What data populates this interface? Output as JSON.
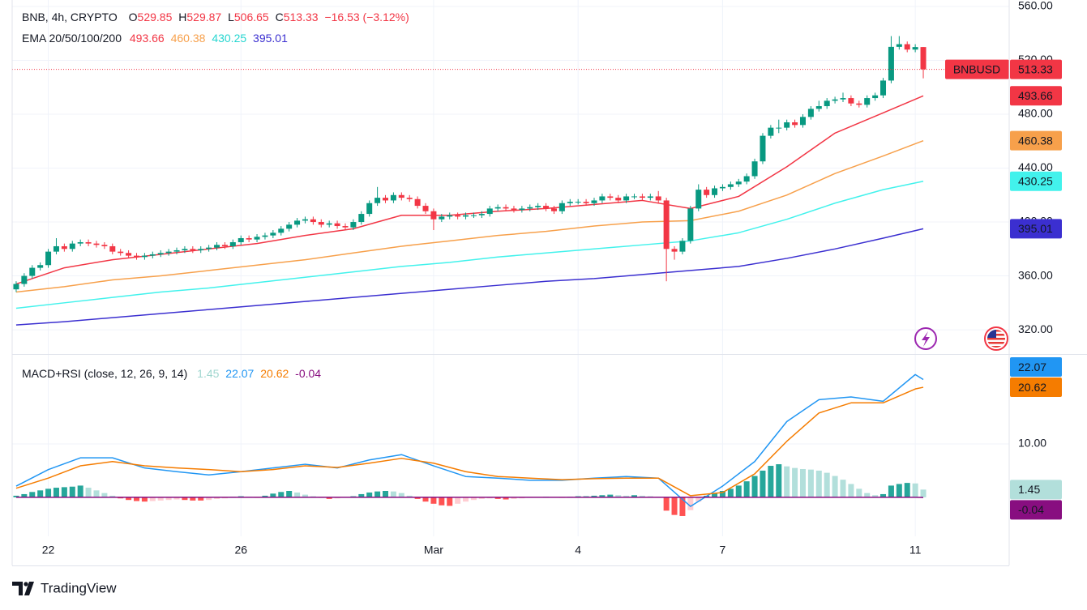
{
  "chart_data": [
    {
      "type": "candlestick",
      "title": "BNB, 4h, CRYPTO",
      "ohlc_labels": [
        "O",
        "H",
        "L",
        "C"
      ],
      "change": "−16.53 (−3.12%)",
      "symbol": "BNBUSD",
      "up_color": "#089981",
      "down_color": "#f23645",
      "open": [
        350,
        354,
        360,
        366,
        368,
        378,
        382,
        380,
        384,
        385,
        384,
        383,
        382,
        378,
        377,
        375,
        374,
        375,
        376,
        377,
        378,
        379,
        380,
        379,
        380,
        381,
        383,
        382,
        385,
        388,
        387,
        389,
        390,
        392,
        395,
        398,
        401,
        402,
        400,
        398,
        399,
        397,
        396,
        400,
        406,
        414,
        418,
        416,
        420,
        418,
        417,
        412,
        408,
        402,
        404,
        405,
        404,
        405,
        405,
        406,
        410,
        411,
        410,
        409,
        410,
        411,
        412,
        410,
        408,
        414,
        415,
        415,
        414,
        416,
        419,
        418,
        416,
        419,
        419,
        418,
        419,
        416,
        380,
        378,
        386,
        410,
        424,
        420,
        425,
        426,
        428,
        430,
        434,
        445,
        464,
        470,
        470,
        474,
        472,
        478,
        484,
        486,
        490,
        491,
        492,
        488,
        487,
        492,
        494,
        505,
        530,
        532,
        528,
        529.85
      ],
      "high": [
        356,
        362,
        368,
        370,
        380,
        388,
        384,
        386,
        387,
        387,
        386,
        385,
        384,
        380,
        379,
        377,
        377,
        378,
        379,
        380,
        381,
        382,
        382,
        382,
        383,
        385,
        385,
        387,
        390,
        390,
        391,
        392,
        394,
        397,
        400,
        403,
        404,
        404,
        402,
        401,
        401,
        399,
        402,
        408,
        416,
        426,
        420,
        422,
        422,
        420,
        419,
        414,
        410,
        406,
        407,
        407,
        407,
        407,
        408,
        412,
        413,
        413,
        412,
        412,
        413,
        414,
        414,
        412,
        416,
        417,
        417,
        417,
        418,
        421,
        421,
        420,
        421,
        421,
        421,
        421,
        423,
        418,
        382,
        388,
        412,
        428,
        426,
        427,
        428,
        430,
        432,
        436,
        447,
        466,
        472,
        476,
        476,
        476,
        480,
        486,
        490,
        492,
        493,
        496,
        494,
        490,
        494,
        496,
        507,
        538,
        538,
        534,
        532,
        529.87
      ],
      "low": [
        348,
        352,
        358,
        364,
        366,
        376,
        378,
        378,
        382,
        382,
        381,
        380,
        376,
        375,
        373,
        372,
        372,
        373,
        374,
        375,
        376,
        377,
        377,
        377,
        378,
        379,
        380,
        380,
        383,
        385,
        385,
        387,
        388,
        390,
        393,
        396,
        399,
        398,
        396,
        396,
        395,
        394,
        394,
        398,
        404,
        412,
        414,
        414,
        416,
        415,
        410,
        406,
        394,
        400,
        402,
        402,
        402,
        403,
        403,
        404,
        408,
        408,
        407,
        407,
        408,
        409,
        408,
        406,
        406,
        412,
        413,
        412,
        412,
        414,
        416,
        414,
        414,
        417,
        416,
        416,
        414,
        356,
        372,
        376,
        384,
        408,
        418,
        418,
        423,
        424,
        426,
        428,
        432,
        443,
        462,
        466,
        468,
        470,
        470,
        476,
        482,
        484,
        488,
        489,
        486,
        485,
        485,
        490,
        492,
        503,
        528,
        526,
        526,
        506.65
      ],
      "close": [
        354,
        360,
        366,
        368,
        378,
        382,
        380,
        384,
        385,
        384,
        383,
        382,
        378,
        377,
        375,
        374,
        375,
        376,
        377,
        378,
        379,
        380,
        379,
        380,
        381,
        383,
        382,
        385,
        388,
        387,
        389,
        390,
        392,
        395,
        398,
        401,
        402,
        400,
        398,
        399,
        397,
        396,
        400,
        406,
        414,
        418,
        416,
        420,
        418,
        417,
        412,
        408,
        402,
        404,
        405,
        404,
        405,
        405,
        406,
        410,
        411,
        410,
        409,
        410,
        411,
        412,
        410,
        408,
        414,
        415,
        415,
        414,
        416,
        419,
        418,
        416,
        419,
        419,
        418,
        419,
        416,
        380,
        378,
        386,
        410,
        424,
        420,
        425,
        426,
        428,
        430,
        434,
        445,
        464,
        470,
        470,
        474,
        472,
        478,
        484,
        486,
        490,
        491,
        492,
        488,
        487,
        492,
        494,
        505,
        530,
        532,
        528,
        529.85,
        513.33
      ],
      "overlay": {
        "name": "EMA 20/50/100/200",
        "x": [
          0,
          6,
          12,
          18,
          24,
          30,
          36,
          42,
          48,
          54,
          60,
          66,
          72,
          78,
          84,
          90,
          96,
          102,
          108,
          113
        ],
        "series": [
          {
            "color": "#f23645",
            "values": [
              354,
              366,
              372,
              376,
              380,
              384,
              390,
              395,
              405,
              405,
              408,
              410,
              413,
              416,
              410,
              419,
              441,
              466,
              481,
              493.66
            ]
          },
          {
            "color": "#f7a04b",
            "values": [
              348,
              352,
              357,
              360,
              364,
              368,
              372,
              377,
              382,
              386,
              390,
              393,
              397,
              400,
              401,
              408,
              420,
              436,
              449,
              460.38
            ]
          },
          {
            "color": "#42f2ec",
            "values": [
              336,
              340,
              344,
              348,
              351,
              355,
              359,
              363,
              367,
              370,
              374,
              377,
              380,
              383,
              386,
              392,
              402,
              414,
              424,
              430.25
            ]
          },
          {
            "color": "#3b2fd0",
            "values": [
              323.6,
              326,
              329,
              332,
              335,
              338,
              341,
              344,
              347,
              350,
              353,
              356,
              358,
              361,
              364,
              367,
              373,
              380,
              388,
              395.01
            ]
          }
        ]
      },
      "ylim": [
        302,
        564.8
      ],
      "yticks": [
        {
          "value": 560,
          "label": "560.00"
        },
        {
          "value": 520,
          "label": "520.00"
        },
        {
          "value": 480,
          "label": "480.00"
        },
        {
          "value": 440,
          "label": "440.00"
        },
        {
          "value": 400,
          "label": "400.00"
        },
        {
          "value": 360,
          "label": "360.00"
        },
        {
          "value": 320,
          "label": "320.00"
        }
      ],
      "grid": true
    },
    {
      "type": "macd",
      "title": "MACD+RSI (close, 12, 26, 9, 14)",
      "histogram": {
        "colors": [
          "#26a69a",
          "#b2dfdb",
          "#ff5252",
          "#ffcdd2"
        ],
        "values": [
          0.3,
          0.6,
          1.0,
          1.3,
          1.6,
          1.8,
          1.9,
          2.0,
          2.2,
          1.8,
          1.3,
          0.8,
          0.3,
          -0.2,
          -0.5,
          -0.7,
          -0.8,
          -0.7,
          -0.6,
          -0.5,
          -0.4,
          -0.5,
          -0.6,
          -0.6,
          -0.5,
          -0.3,
          -0.2,
          0.1,
          0.2,
          0.1,
          -0.1,
          0.3,
          0.7,
          1.0,
          1.2,
          0.9,
          0.5,
          0.2,
          -0.1,
          -0.3,
          -0.2,
          0.0,
          0.2,
          0.6,
          0.9,
          1.1,
          1.2,
          1.1,
          0.8,
          0.3,
          -0.3,
          -0.8,
          -1.2,
          -1.5,
          -1.6,
          -1.2,
          -0.8,
          -0.5,
          -0.3,
          -0.2,
          -0.3,
          -0.4,
          -0.3,
          -0.2,
          -0.1,
          0.0,
          0.1,
          0.0,
          -0.1,
          0.1,
          0.2,
          0.2,
          0.3,
          0.4,
          0.5,
          0.4,
          0.3,
          0.4,
          0.3,
          0.2,
          0.1,
          -2.5,
          -3.3,
          -3.5,
          -2.4,
          -0.8,
          0.3,
          0.8,
          1.2,
          1.6,
          2.2,
          3.0,
          4.0,
          5.0,
          5.9,
          6.2,
          5.8,
          5.5,
          5.3,
          5.2,
          5.0,
          4.6,
          4.0,
          3.3,
          2.5,
          1.6,
          0.8,
          0.4,
          0.6,
          2.2,
          2.5,
          2.7,
          2.6,
          1.45
        ]
      },
      "x": [
        0,
        4,
        8,
        12,
        16,
        20,
        24,
        28,
        32,
        36,
        40,
        44,
        48,
        52,
        56,
        60,
        64,
        68,
        72,
        76,
        80,
        84,
        88,
        92,
        96,
        100,
        104,
        108,
        112,
        113
      ],
      "series": [
        {
          "color": "#2196f3",
          "values": [
            2.1,
            5.2,
            7.4,
            7.4,
            5.5,
            4.8,
            4.2,
            4.8,
            5.5,
            6.2,
            5.5,
            7.0,
            8.0,
            5.9,
            3.9,
            3.6,
            3.2,
            3.2,
            3.6,
            3.9,
            3.6,
            -1.7,
            2.1,
            6.7,
            14.2,
            18.3,
            18.8,
            18.0,
            23.0,
            22.07
          ]
        },
        {
          "color": "#f57c00",
          "values": [
            1.7,
            3.6,
            5.9,
            6.7,
            5.9,
            5.5,
            5.2,
            4.8,
            5.2,
            5.9,
            5.6,
            6.4,
            7.3,
            6.4,
            4.8,
            3.9,
            3.6,
            3.3,
            3.5,
            3.6,
            3.6,
            0.3,
            0.9,
            4.4,
            10.5,
            15.8,
            17.7,
            17.7,
            20.3,
            20.62
          ]
        },
        {
          "color": "#880e80",
          "values": [
            0,
            0,
            0,
            0,
            0,
            0,
            0,
            0,
            0,
            0,
            0,
            0,
            0,
            0,
            0,
            0,
            0,
            0,
            0,
            0,
            0,
            0,
            0,
            0,
            0,
            0,
            0,
            0,
            0,
            -0.04
          ]
        }
      ],
      "ylim": [
        -7.3,
        26.7
      ],
      "yticks": [
        {
          "value": 10,
          "label": "10.00"
        }
      ],
      "xlim": [
        -0.5,
        123.7
      ],
      "xticks": [
        {
          "value": 4,
          "label": "22"
        },
        {
          "value": 28,
          "label": "26"
        },
        {
          "value": 52,
          "label": "Mar"
        },
        {
          "value": 70,
          "label": "4"
        },
        {
          "value": 88,
          "label": "7"
        },
        {
          "value": 112,
          "label": "11"
        }
      ],
      "grid": true
    }
  ],
  "footer": "TradingView"
}
